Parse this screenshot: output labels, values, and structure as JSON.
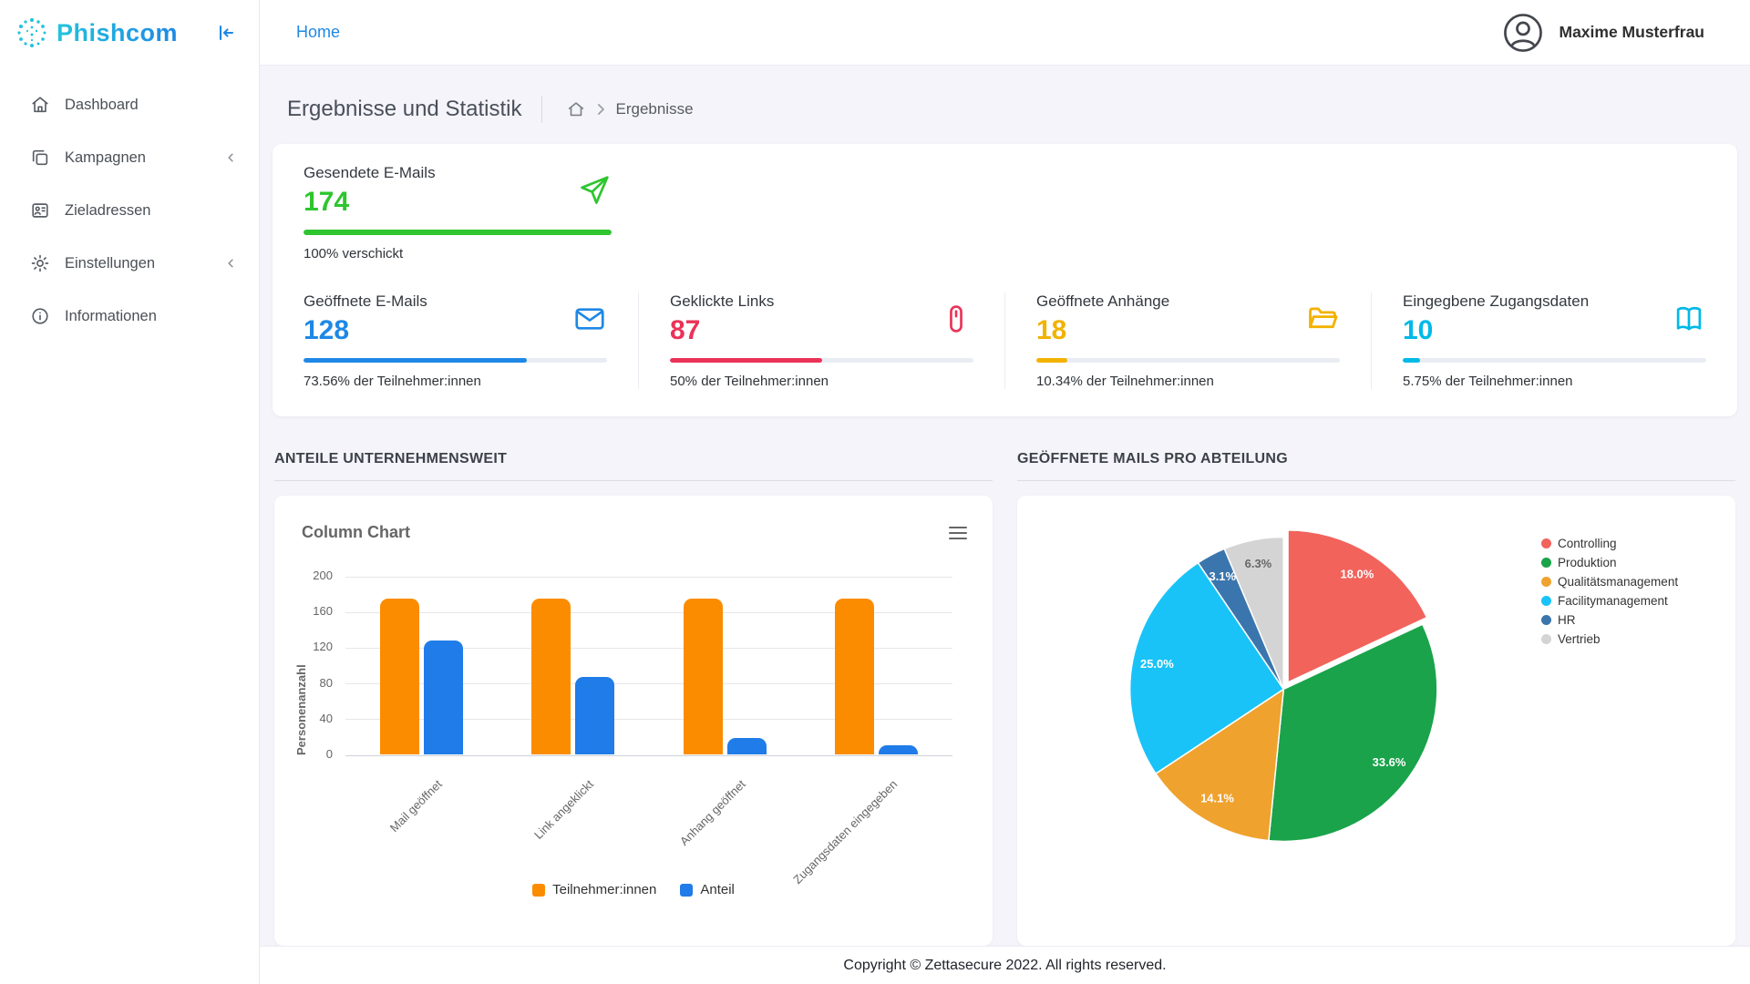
{
  "theme": {
    "accent": "#1e88e5",
    "brand1": "#22c3dd",
    "brand2": "#1e88e5"
  },
  "brand": {
    "name": "Phishcom"
  },
  "topbar": {
    "home": "Home",
    "user": "Maxime Musterfrau"
  },
  "sidebar": {
    "items": [
      {
        "label": "Dashboard"
      },
      {
        "label": "Kampagnen",
        "expandable": true
      },
      {
        "label": "Zieladressen"
      },
      {
        "label": "Einstellungen",
        "expandable": true
      },
      {
        "label": "Informationen"
      }
    ]
  },
  "page": {
    "title": "Ergebnisse und Statistik",
    "breadcrumb_current": "Ergebnisse"
  },
  "stats": {
    "sent": {
      "label": "Gesendete E-Mails",
      "value": "174",
      "percent": 100,
      "caption": "100% verschickt",
      "color": "#2ec52e"
    },
    "cards": [
      {
        "label": "Geöffnete E-Mails",
        "value": "128",
        "percent": 73.56,
        "caption": "73.56% der Teilnehmer:innen",
        "color": "#1e88e5"
      },
      {
        "label": "Geklickte Links",
        "value": "87",
        "percent": 50,
        "caption": "50% der Teilnehmer:innen",
        "color": "#ea3358"
      },
      {
        "label": "Geöffnete Anhänge",
        "value": "18",
        "percent": 10.34,
        "caption": "10.34% der Teilnehmer:innen",
        "color": "#f2b200"
      },
      {
        "label": "Eingegbene Zugangsdaten",
        "value": "10",
        "percent": 5.75,
        "caption": "5.75% der Teilnehmer:innen",
        "color": "#00b9e8"
      }
    ]
  },
  "sections": {
    "left": "ANTEILE UNTERNEHMENSWEIT",
    "right": "GEÖFFNETE MAILS PRO ABTEILUNG"
  },
  "chart_data": [
    {
      "type": "bar",
      "title": "Column Chart",
      "ylabel": "Personenanzahl",
      "xlabel": "",
      "ylim": [
        0,
        200
      ],
      "yticks": [
        0,
        40,
        80,
        120,
        160,
        200
      ],
      "grid": true,
      "legend_position": "bottom",
      "categories": [
        "Mail geöffnet",
        "Link angeklickt",
        "Anhang geöffnet",
        "Zugangsdaten eingegeben"
      ],
      "series": [
        {
          "name": "Teilnehmer:innen",
          "color": "#fb8c00",
          "values": [
            174,
            174,
            174,
            174
          ]
        },
        {
          "name": "Anteil",
          "color": "#1f7ce8",
          "values": [
            128,
            87,
            18,
            10
          ]
        }
      ]
    },
    {
      "type": "pie",
      "legend_position": "right",
      "labels": [
        "Controlling",
        "Produktion",
        "Qualitätsmanagement",
        "Facilitymanagement",
        "HR",
        "Vertrieb"
      ],
      "values": [
        18.0,
        33.6,
        14.1,
        25.0,
        3.1,
        6.3
      ],
      "value_labels": [
        "18.0%",
        "33.6%",
        "14.1%",
        "25.0%",
        "3.1%",
        "6.3%"
      ],
      "colors": [
        "#f2635c",
        "#1aa34a",
        "#efa22e",
        "#19c3f7",
        "#3a76ad",
        "#d4d4d4"
      ],
      "exploded_segment": 0
    }
  ],
  "footer": {
    "copyright": "Copyright © Zettasecure 2022. All rights reserved."
  }
}
